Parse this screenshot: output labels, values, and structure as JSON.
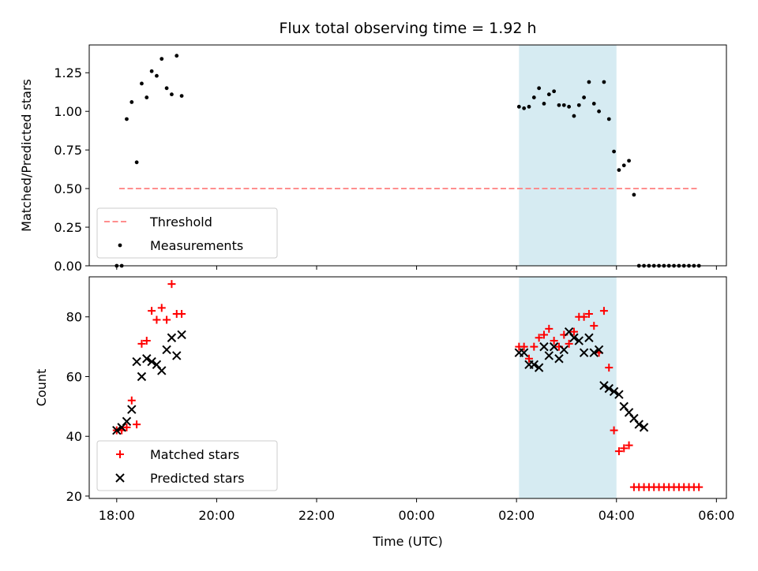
{
  "chart_data": {
    "title": "Flux total observing time = 1.92 h",
    "xlabel": "Time (UTC)",
    "x_units": "hours since 18:00 UTC",
    "xlim": [
      -0.55,
      12.2
    ],
    "x_ticks": [
      {
        "value": 0,
        "label": "18:00"
      },
      {
        "value": 2,
        "label": "20:00"
      },
      {
        "value": 4,
        "label": "22:00"
      },
      {
        "value": 6,
        "label": "00:00"
      },
      {
        "value": 8,
        "label": "02:00"
      },
      {
        "value": 10,
        "label": "04:00"
      },
      {
        "value": 12,
        "label": "06:00"
      }
    ],
    "shaded_span": {
      "x0": 8.05,
      "x1": 10.0,
      "color": "#add8e6"
    },
    "panels": [
      {
        "type": "scatter",
        "ylabel": "Matched/Predicted stars",
        "ylim": [
          0,
          1.43
        ],
        "y_ticks": [
          {
            "value": 0.0,
            "label": "0.00"
          },
          {
            "value": 0.25,
            "label": "0.25"
          },
          {
            "value": 0.5,
            "label": "0.50"
          },
          {
            "value": 0.75,
            "label": "0.75"
          },
          {
            "value": 1.0,
            "label": "1.00"
          },
          {
            "value": 1.25,
            "label": "1.25"
          }
        ],
        "legend": {
          "placement": "lower-left",
          "entries": [
            "Threshold",
            "Measurements"
          ]
        },
        "threshold": {
          "name": "Threshold",
          "y": 0.5,
          "x_range": [
            0.05,
            11.63
          ],
          "color": "#ff7f7f"
        },
        "series": [
          {
            "name": "Measurements",
            "color": "#000000",
            "x": [
              0.0,
              0.1,
              0.2,
              0.3,
              0.4,
              0.5,
              0.6,
              0.7,
              0.8,
              0.9,
              1.0,
              1.1,
              1.2,
              1.3,
              8.05,
              8.15,
              8.25,
              8.35,
              8.45,
              8.55,
              8.65,
              8.75,
              8.85,
              8.95,
              9.05,
              9.15,
              9.25,
              9.35,
              9.45,
              9.55,
              9.65,
              9.75,
              9.85,
              9.95,
              10.05,
              10.15,
              10.25,
              10.35,
              10.45,
              10.55,
              10.65,
              10.75,
              10.85,
              10.95,
              11.05,
              11.15,
              11.25,
              11.35,
              11.45,
              11.55,
              11.65
            ],
            "y": [
              0.0,
              0.0,
              0.95,
              1.06,
              0.67,
              1.18,
              1.09,
              1.26,
              1.23,
              1.34,
              1.15,
              1.11,
              1.36,
              1.1,
              1.03,
              1.02,
              1.03,
              1.09,
              1.15,
              1.05,
              1.11,
              1.13,
              1.04,
              1.04,
              1.03,
              0.97,
              1.04,
              1.09,
              1.19,
              1.05,
              1.0,
              1.19,
              0.95,
              0.74,
              0.62,
              0.65,
              0.68,
              0.46,
              0.0,
              0.0,
              0.0,
              0.0,
              0.0,
              0.0,
              0.0,
              0.0,
              0.0,
              0.0,
              0.0,
              0.0,
              0.0
            ]
          }
        ]
      },
      {
        "type": "scatter",
        "ylabel": "Count",
        "ylim": [
          19.2,
          93.4
        ],
        "y_ticks": [
          {
            "value": 20,
            "label": "20"
          },
          {
            "value": 40,
            "label": "40"
          },
          {
            "value": 60,
            "label": "60"
          },
          {
            "value": 80,
            "label": "80"
          }
        ],
        "legend": {
          "placement": "lower-left",
          "entries": [
            "Matched stars",
            "Predicted stars"
          ]
        },
        "series": [
          {
            "name": "Matched stars",
            "marker": "plus",
            "color": "#ff0000",
            "x": [
              0.0,
              0.1,
              0.2,
              0.3,
              0.4,
              0.5,
              0.6,
              0.7,
              0.8,
              0.9,
              1.0,
              1.1,
              1.2,
              1.3,
              8.05,
              8.15,
              8.25,
              8.35,
              8.45,
              8.55,
              8.65,
              8.75,
              8.85,
              8.95,
              9.05,
              9.15,
              9.25,
              9.35,
              9.45,
              9.55,
              9.65,
              9.75,
              9.85,
              9.95,
              10.05,
              10.15,
              10.25,
              10.35,
              10.45,
              10.55,
              10.65,
              10.75,
              10.85,
              10.95,
              11.05,
              11.15,
              11.25,
              11.35,
              11.45,
              11.55,
              11.65
            ],
            "y": [
              42,
              42,
              43,
              52,
              44,
              71,
              72,
              82,
              79,
              83,
              79,
              91,
              81,
              81,
              70,
              70,
              66,
              70,
              73,
              74,
              76,
              72,
              70,
              74,
              71,
              75,
              80,
              80,
              81,
              77,
              68,
              82,
              63,
              42,
              35,
              36,
              37,
              23,
              23,
              23,
              23,
              23,
              23,
              23,
              23,
              23,
              23,
              23,
              23,
              23,
              23
            ]
          },
          {
            "name": "Predicted stars",
            "marker": "x",
            "color": "#000000",
            "x": [
              0.0,
              0.1,
              0.2,
              0.3,
              0.4,
              0.5,
              0.6,
              0.7,
              0.8,
              0.9,
              1.0,
              1.1,
              1.2,
              1.3,
              8.05,
              8.15,
              8.25,
              8.35,
              8.45,
              8.55,
              8.65,
              8.75,
              8.85,
              8.95,
              9.05,
              9.15,
              9.25,
              9.35,
              9.45,
              9.55,
              9.65,
              9.75,
              9.85,
              9.95,
              10.05,
              10.15,
              10.25,
              10.35,
              10.45,
              10.55
            ],
            "y": [
              42,
              43,
              45,
              49,
              65,
              60,
              66,
              65,
              64,
              62,
              69,
              73,
              67,
              74,
              68,
              68,
              64,
              64,
              63,
              70,
              67,
              70,
              66,
              69,
              75,
              73,
              72,
              68,
              73,
              68,
              69,
              57,
              56,
              55,
              54,
              50,
              48,
              46,
              44,
              43
            ]
          }
        ]
      }
    ]
  }
}
